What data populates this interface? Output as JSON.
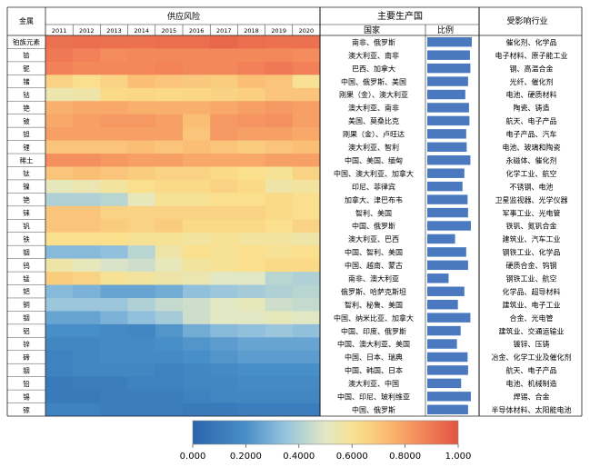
{
  "chart_data": {
    "type": "heatmap",
    "title": "供应风险",
    "row_header": "金属",
    "years": [
      "2011",
      "2012",
      "2013",
      "2014",
      "2015",
      "2016",
      "2017",
      "2018",
      "2019",
      "2020"
    ],
    "metals": [
      "铂族元素",
      "铪",
      "铌",
      "锗",
      "钴",
      "铯",
      "铍",
      "钽",
      "锂",
      "稀土",
      "钛",
      "镍",
      "铯",
      "铼",
      "钒",
      "铁",
      "铟",
      "钨",
      "锰",
      "钯",
      "铜",
      "铟",
      "铝",
      "锌",
      "碲",
      "铟",
      "铅",
      "锡",
      "镓"
    ],
    "values": [
      [
        0.92,
        0.93,
        0.92,
        0.92,
        0.93,
        0.93,
        0.95,
        0.93,
        0.92,
        0.92
      ],
      [
        0.9,
        0.88,
        0.85,
        0.86,
        0.86,
        0.86,
        0.86,
        0.86,
        0.86,
        0.85
      ],
      [
        0.88,
        0.86,
        0.86,
        0.86,
        0.87,
        0.86,
        0.86,
        0.88,
        0.9,
        0.88
      ],
      [
        0.66,
        0.62,
        0.66,
        0.72,
        0.7,
        0.69,
        0.68,
        0.72,
        0.7,
        0.6
      ],
      [
        0.55,
        0.56,
        0.64,
        0.65,
        0.64,
        0.65,
        0.66,
        0.67,
        0.7,
        0.7
      ],
      [
        0.76,
        0.78,
        0.78,
        0.76,
        0.76,
        0.76,
        0.78,
        0.8,
        0.82,
        0.8
      ],
      [
        0.78,
        0.8,
        0.82,
        0.82,
        0.8,
        0.72,
        0.82,
        0.83,
        0.84,
        0.8
      ],
      [
        0.8,
        0.8,
        0.8,
        0.8,
        0.8,
        0.7,
        0.82,
        0.8,
        0.8,
        0.78
      ],
      [
        0.7,
        0.7,
        0.7,
        0.72,
        0.7,
        0.72,
        0.7,
        0.68,
        0.7,
        0.72
      ],
      [
        0.84,
        0.84,
        0.82,
        0.8,
        0.8,
        0.78,
        0.78,
        0.78,
        0.8,
        0.8
      ],
      [
        0.7,
        0.72,
        0.7,
        0.68,
        0.66,
        0.66,
        0.64,
        0.62,
        0.6,
        0.66
      ],
      [
        0.52,
        0.54,
        0.58,
        0.62,
        0.64,
        0.64,
        0.66,
        0.64,
        0.56,
        0.58
      ],
      [
        0.4,
        0.4,
        0.42,
        0.52,
        0.6,
        0.6,
        0.62,
        0.62,
        0.64,
        0.62
      ],
      [
        0.7,
        0.7,
        0.66,
        0.66,
        0.66,
        0.66,
        0.66,
        0.66,
        0.64,
        0.62
      ],
      [
        0.7,
        0.7,
        0.68,
        0.66,
        0.68,
        0.64,
        0.64,
        0.64,
        0.62,
        0.66
      ],
      [
        0.62,
        0.62,
        0.62,
        0.6,
        0.6,
        0.58,
        0.6,
        0.58,
        0.58,
        0.56
      ],
      [
        0.32,
        0.32,
        0.34,
        0.42,
        0.56,
        0.62,
        0.6,
        0.62,
        0.6,
        0.62
      ],
      [
        0.56,
        0.52,
        0.48,
        0.46,
        0.52,
        0.58,
        0.6,
        0.62,
        0.64,
        0.64
      ],
      [
        0.68,
        0.66,
        0.6,
        0.58,
        0.56,
        0.54,
        0.5,
        0.5,
        0.42,
        0.4
      ],
      [
        0.32,
        0.3,
        0.26,
        0.26,
        0.28,
        0.34,
        0.36,
        0.38,
        0.4,
        0.42
      ],
      [
        0.36,
        0.36,
        0.36,
        0.4,
        0.44,
        0.46,
        0.5,
        0.52,
        0.46,
        0.44
      ],
      [
        0.26,
        0.26,
        0.3,
        0.34,
        0.38,
        0.46,
        0.5,
        0.5,
        0.52,
        0.5
      ],
      [
        0.2,
        0.2,
        0.18,
        0.16,
        0.22,
        0.28,
        0.32,
        0.34,
        0.36,
        0.34
      ],
      [
        0.16,
        0.16,
        0.18,
        0.18,
        0.2,
        0.22,
        0.24,
        0.26,
        0.26,
        0.26
      ],
      [
        0.14,
        0.16,
        0.18,
        0.18,
        0.18,
        0.2,
        0.22,
        0.24,
        0.24,
        0.24
      ],
      [
        0.14,
        0.16,
        0.16,
        0.16,
        0.14,
        0.16,
        0.18,
        0.2,
        0.2,
        0.2
      ],
      [
        0.1,
        0.12,
        0.12,
        0.14,
        0.14,
        0.16,
        0.16,
        0.18,
        0.18,
        0.18
      ],
      [
        0.1,
        0.1,
        0.12,
        0.12,
        0.12,
        0.14,
        0.16,
        0.16,
        0.16,
        0.16
      ],
      [
        0.14,
        0.14,
        0.12,
        0.12,
        0.12,
        0.1,
        0.1,
        0.12,
        0.12,
        0.12
      ]
    ],
    "producer_header": "主要生产国",
    "country_header": "国家",
    "ratio_header": "比例",
    "industry_header": "受影响行业",
    "countries": [
      "南非、俄罗斯",
      "澳大利亚、南非",
      "巴西、加拿大",
      "中国、俄罗斯、美国",
      "刚果（金）、澳大利亚",
      "澳大利亚、南非",
      "美国、莫桑比克",
      "刚果（金）、卢旺达",
      "澳大利亚、智利",
      "中国、美国、缅甸",
      "中国、澳大利亚、加拿大",
      "印尼、菲律宾",
      "加拿大、津巴布韦",
      "智利、美国",
      "中国、俄罗斯",
      "澳大利亚、巴西",
      "中国、智利、美国",
      "中国、越南、蒙古",
      "南非、澳大利亚",
      "俄罗斯、哈萨克斯坦",
      "智利、秘鲁、美国",
      "中国、纳米比亚、加拿大",
      "中国、印度、俄罗斯",
      "中国、澳大利亚、美国",
      "中国、日本、瑞典",
      "中国、韩国、日本",
      "澳大利亚、中国",
      "中国、印尼、玻利维亚",
      "中国、俄罗斯"
    ],
    "ratios": [
      0.96,
      0.92,
      0.93,
      0.88,
      0.82,
      0.9,
      0.91,
      0.84,
      0.85,
      0.93,
      0.8,
      0.76,
      0.87,
      0.88,
      0.94,
      0.6,
      0.84,
      0.88,
      0.46,
      0.8,
      0.66,
      0.93,
      0.72,
      0.64,
      0.87,
      0.88,
      0.73,
      0.94,
      0.88
    ],
    "industries": [
      "催化剂、化学品",
      "电子材料、原子能工业",
      "钢、高温合金",
      "光纤、催化剂",
      "电池、硬质材料",
      "陶瓷、铸造",
      "航天、电子产品",
      "电子产品、汽车",
      "电池、玻璃和陶瓷",
      "永磁体、催化剂",
      "化学工业、航空",
      "不锈钢、电池",
      "卫星监视器、光学仪器",
      "军事工业、光电管",
      "铁钒、氮钒合金",
      "建筑业、汽车工业",
      "钢铁工业、化学品",
      "硬质合金、钨钢",
      "钢铁工业、航空",
      "化学品、超导材料",
      "建筑业、电子工业",
      "合金、光电管",
      "建筑业、交通运输业",
      "镀锌、压铸",
      "冶金、化学工业及催化剂",
      "航天、电子产品",
      "电池、机械制造",
      "焊锡、合金",
      "半导体材料、太阳能电池"
    ],
    "colorbar": {
      "ticks": [
        "0.000",
        "0.2000",
        "0.4000",
        "0.6000",
        "0.8000",
        "1.000"
      ],
      "range": [
        0,
        1
      ]
    }
  }
}
